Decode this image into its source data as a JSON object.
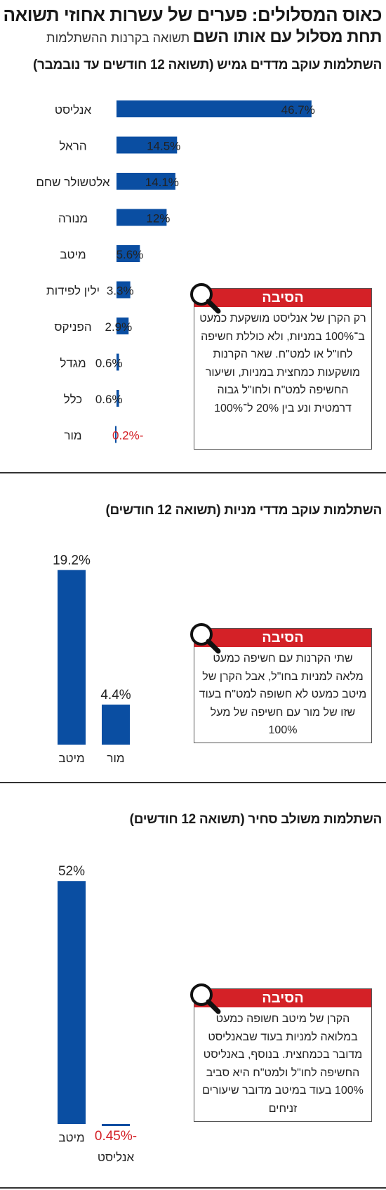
{
  "headline": {
    "line1": "כאוס המסלולים: פערים של עשרות אחוזי תשואה",
    "line2_bold": "תחת מסלול עם אותו השם",
    "line2_sub": "תשואה בקרנות ההשתלמות"
  },
  "sections": [
    {
      "title": "השתלמות עוקב מדדים גמיש (תשואה 12 חודשים עד נובמבר)",
      "reason_title": "הסיבה",
      "reason_text": "רק הקרן של אנליסט מושקעת כמעט ב־100% במניות, ולא כוללת חשיפה לחו\"ל או למט\"ח. שאר הקרנות מושקעות כמחצית במניות, ושיעור החשיפה למט\"ח ולחו\"ל גבוה דרמטית ונע בין 20% ל־100%"
    },
    {
      "title": "השתלמות עוקב מדדי מניות (תשואה 12 חודשים)",
      "reason_title": "הסיבה",
      "reason_text": "שתי הקרנות עם חשיפה כמעט מלאה למניות בחו\"ל, אבל הקרן של מיטב כמעט לא חשופה למט\"ח בעוד שזו של מור עם חשיפה של מעל 100%"
    },
    {
      "title": "השתלמות משולב סחיר (תשואה 12 חודשים)",
      "reason_title": "הסיבה",
      "reason_text": "הקרן של מיטב חשופה כמעט במלואה למניות בעוד שבאנליסט מדובר בכמחצית. בנוסף, באנליסט החשיפה לחו\"ל ולמט\"ח היא סביב 100% בעוד במיטב מדובר שיעורים זניחים"
    }
  ],
  "colors": {
    "bar": "#0a4ea2",
    "negative": "#d42127",
    "reason_header": "#d42127"
  },
  "icons": {
    "reason": "magnifier-icon"
  },
  "chart_data": [
    {
      "type": "bar",
      "orientation": "horizontal",
      "title": "השתלמות עוקב מדדים גמיש (תשואה 12 חודשים עד נובמבר)",
      "categories": [
        "אנליסט",
        "הראל",
        "אלטשולר שחם",
        "מנורה",
        "מיטב",
        "ילין לפידות",
        "הפניקס",
        "מגדל",
        "כלל",
        "מור"
      ],
      "values": [
        46.7,
        14.5,
        14.1,
        12,
        5.6,
        3.3,
        2.9,
        0.6,
        0.6,
        -0.2
      ],
      "labels": [
        "46.7%",
        "14.5%",
        "14.1%",
        "12%",
        "5.6%",
        "3.3%",
        "2.9%",
        "0.6%",
        "0.6%",
        "-0.2%"
      ],
      "unit": "%"
    },
    {
      "type": "bar",
      "orientation": "vertical",
      "title": "השתלמות עוקב מדדי מניות (תשואה 12 חודשים)",
      "categories": [
        "מיטב",
        "מור"
      ],
      "values": [
        19.2,
        4.4
      ],
      "labels": [
        "19.2%",
        "4.4%"
      ],
      "unit": "%"
    },
    {
      "type": "bar",
      "orientation": "vertical",
      "title": "השתלמות משולב סחיר (תשואה 12 חודשים)",
      "categories": [
        "מיטב",
        "אנליסט"
      ],
      "values": [
        52,
        -0.45
      ],
      "labels": [
        "52%",
        "-0.45%"
      ],
      "unit": "%"
    }
  ]
}
